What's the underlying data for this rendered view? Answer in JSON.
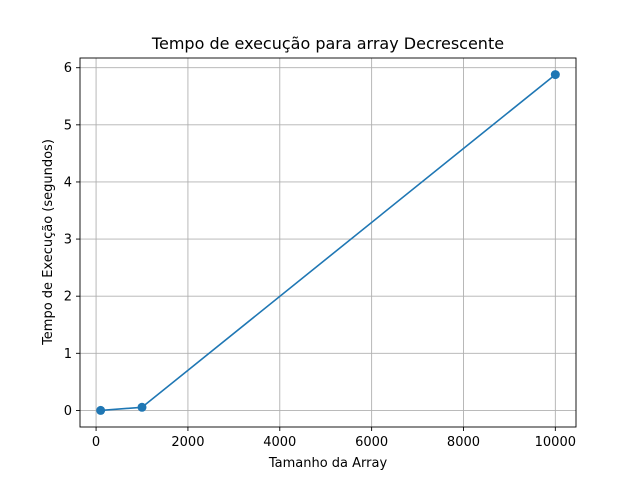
{
  "chart_data": {
    "type": "line",
    "title": "Tempo de execução para array Decrescente",
    "xlabel": "Tamanho da Array",
    "ylabel": "Tempo de Execução (segundos)",
    "series": [
      {
        "x": [
          100,
          1000,
          10000
        ],
        "y": [
          0.0,
          0.055,
          5.88
        ],
        "color": "#1f77b4",
        "marker": "circle"
      }
    ],
    "xlim": [
      -350,
      10450
    ],
    "ylim": [
      -0.29,
      6.17
    ],
    "xticks": [
      0,
      2000,
      4000,
      6000,
      8000,
      10000
    ],
    "xtick_labels": [
      "0",
      "2000",
      "4000",
      "6000",
      "8000",
      "10000"
    ],
    "yticks": [
      0,
      1,
      2,
      3,
      4,
      5,
      6
    ],
    "ytick_labels": [
      "0",
      "1",
      "2",
      "3",
      "4",
      "5",
      "6"
    ],
    "grid": true,
    "legend": "none"
  }
}
